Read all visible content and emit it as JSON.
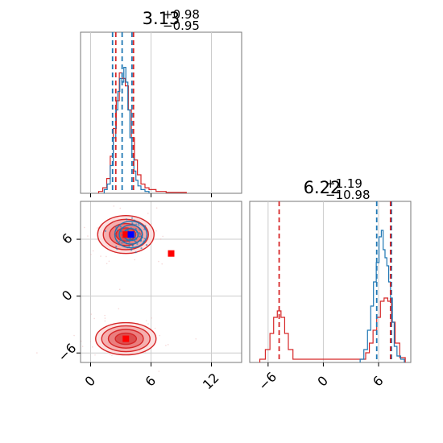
{
  "chart_data": {
    "type": "corner",
    "parameters": [
      {
        "title": {
          "median": "3.13",
          "plus": "+0.98",
          "minus": "−0.95"
        },
        "range": [
          -1,
          15
        ],
        "quantiles": {
          "blue": [
            2.18,
            3.13,
            4.11
          ],
          "red": [
            2.5,
            4.26
          ]
        },
        "histograms": {
          "blue": {
            "x": [
              1.5,
              1.8,
              2.1,
              2.4,
              2.6,
              2.8,
              3.0,
              3.2,
              3.4,
              3.6,
              3.8,
              4.0,
              4.2,
              4.4,
              4.6,
              4.8,
              5.2,
              5.6
            ],
            "y": [
              0.02,
              0.05,
              0.15,
              0.3,
              0.45,
              0.55,
              0.62,
              0.6,
              0.68,
              0.6,
              0.45,
              0.3,
              0.2,
              0.12,
              0.07,
              0.04,
              0.02,
              0.01
            ]
          },
          "red": {
            "x": [
              1.0,
              1.4,
              1.8,
              2.1,
              2.4,
              2.7,
              3.0,
              3.3,
              3.6,
              3.9,
              4.2,
              4.5,
              4.8,
              5.2,
              5.6,
              6.0,
              7.0,
              8.0,
              9.0
            ],
            "y": [
              0.01,
              0.03,
              0.08,
              0.2,
              0.35,
              0.5,
              0.65,
              0.62,
              0.58,
              0.45,
              0.3,
              0.18,
              0.1,
              0.05,
              0.03,
              0.02,
              0.01,
              0.005,
              0.005
            ]
          }
        }
      },
      {
        "title": {
          "median": "6.22",
          "plus": "+1.19",
          "minus": "−10.98"
        },
        "range": [
          -8,
          9.5
        ],
        "quantiles": {
          "blue": [
            5.8,
            7.4
          ],
          "red": [
            -4.8,
            7.3
          ]
        },
        "histograms": {
          "blue": {
            "x": [
              4.2,
              4.6,
              5.0,
              5.3,
              5.6,
              5.9,
              6.2,
              6.4,
              6.6,
              6.8,
              7.0,
              7.2,
              7.4,
              7.6,
              7.8,
              8.2,
              8.6
            ],
            "y": [
              0.02,
              0.08,
              0.2,
              0.35,
              0.5,
              0.62,
              0.78,
              0.82,
              0.7,
              0.65,
              0.6,
              0.5,
              0.4,
              0.25,
              0.1,
              0.04,
              0.02
            ]
          },
          "red": {
            "x": [
              -6.6,
              -6.0,
              -5.6,
              -5.2,
              -4.8,
              -4.4,
              -4.0,
              -3.6,
              -3.0,
              4.4,
              4.8,
              5.2,
              5.6,
              6.0,
              6.4,
              6.8,
              7.2,
              7.6,
              8.0,
              8.6
            ],
            "y": [
              0.02,
              0.08,
              0.18,
              0.28,
              0.32,
              0.28,
              0.18,
              0.08,
              0.02,
              0.02,
              0.06,
              0.12,
              0.2,
              0.28,
              0.38,
              0.4,
              0.38,
              0.25,
              0.12,
              0.03
            ]
          }
        }
      }
    ],
    "scatter_2d": {
      "x_range": [
        -1,
        15
      ],
      "y_range": [
        -7,
        10
      ],
      "blue_cluster": {
        "center": [
          4,
          6.5
        ],
        "spread": [
          1.6,
          1.4
        ]
      },
      "red_clusters": [
        {
          "center": [
            3.5,
            6.5
          ],
          "spread": [
            2.8,
            2.0
          ]
        },
        {
          "center": [
            3.5,
            -4.5
          ],
          "spread": [
            3.0,
            1.7
          ]
        }
      ],
      "markers": {
        "blue": [
          [
            4.0,
            6.5
          ]
        ],
        "red": [
          [
            3.5,
            6.5
          ],
          [
            8.0,
            4.5
          ],
          [
            3.5,
            -4.5
          ]
        ]
      }
    },
    "xticks_param1": [
      "0",
      "6",
      "12"
    ],
    "yticks_param2": [
      "−6",
      "0",
      "6"
    ],
    "xticks_param2": [
      "−6",
      "0",
      "6"
    ],
    "tick_values_param1": [
      0,
      6,
      12
    ],
    "tick_values_param2": [
      -6,
      0,
      6
    ],
    "colors": {
      "blue": "#1f77b4",
      "red": "#d62728",
      "grid": "#cccccc",
      "frame": "#777777"
    },
    "grid": true
  }
}
